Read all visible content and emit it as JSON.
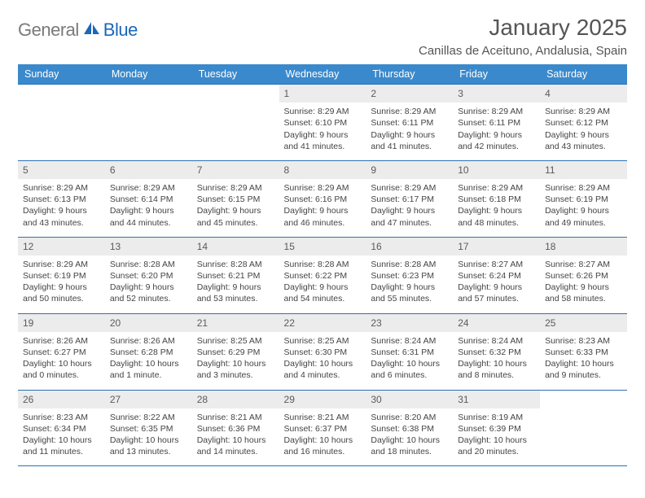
{
  "brand": {
    "general": "General",
    "blue": "Blue"
  },
  "title": "January 2025",
  "location": "Canillas de Aceituno, Andalusia, Spain",
  "colors": {
    "header_bg": "#3a89cc",
    "border": "#2a72b5",
    "daynum_bg": "#ececec",
    "text": "#444444",
    "brand_gray": "#7a7a7a",
    "brand_blue": "#1a68ba"
  },
  "weekday_labels": [
    "Sunday",
    "Monday",
    "Tuesday",
    "Wednesday",
    "Thursday",
    "Friday",
    "Saturday"
  ],
  "weeks": [
    [
      null,
      null,
      null,
      {
        "num": "1",
        "sunrise": "8:29 AM",
        "sunset": "6:10 PM",
        "daylight": "9 hours and 41 minutes."
      },
      {
        "num": "2",
        "sunrise": "8:29 AM",
        "sunset": "6:11 PM",
        "daylight": "9 hours and 41 minutes."
      },
      {
        "num": "3",
        "sunrise": "8:29 AM",
        "sunset": "6:11 PM",
        "daylight": "9 hours and 42 minutes."
      },
      {
        "num": "4",
        "sunrise": "8:29 AM",
        "sunset": "6:12 PM",
        "daylight": "9 hours and 43 minutes."
      }
    ],
    [
      {
        "num": "5",
        "sunrise": "8:29 AM",
        "sunset": "6:13 PM",
        "daylight": "9 hours and 43 minutes."
      },
      {
        "num": "6",
        "sunrise": "8:29 AM",
        "sunset": "6:14 PM",
        "daylight": "9 hours and 44 minutes."
      },
      {
        "num": "7",
        "sunrise": "8:29 AM",
        "sunset": "6:15 PM",
        "daylight": "9 hours and 45 minutes."
      },
      {
        "num": "8",
        "sunrise": "8:29 AM",
        "sunset": "6:16 PM",
        "daylight": "9 hours and 46 minutes."
      },
      {
        "num": "9",
        "sunrise": "8:29 AM",
        "sunset": "6:17 PM",
        "daylight": "9 hours and 47 minutes."
      },
      {
        "num": "10",
        "sunrise": "8:29 AM",
        "sunset": "6:18 PM",
        "daylight": "9 hours and 48 minutes."
      },
      {
        "num": "11",
        "sunrise": "8:29 AM",
        "sunset": "6:19 PM",
        "daylight": "9 hours and 49 minutes."
      }
    ],
    [
      {
        "num": "12",
        "sunrise": "8:29 AM",
        "sunset": "6:19 PM",
        "daylight": "9 hours and 50 minutes."
      },
      {
        "num": "13",
        "sunrise": "8:28 AM",
        "sunset": "6:20 PM",
        "daylight": "9 hours and 52 minutes."
      },
      {
        "num": "14",
        "sunrise": "8:28 AM",
        "sunset": "6:21 PM",
        "daylight": "9 hours and 53 minutes."
      },
      {
        "num": "15",
        "sunrise": "8:28 AM",
        "sunset": "6:22 PM",
        "daylight": "9 hours and 54 minutes."
      },
      {
        "num": "16",
        "sunrise": "8:28 AM",
        "sunset": "6:23 PM",
        "daylight": "9 hours and 55 minutes."
      },
      {
        "num": "17",
        "sunrise": "8:27 AM",
        "sunset": "6:24 PM",
        "daylight": "9 hours and 57 minutes."
      },
      {
        "num": "18",
        "sunrise": "8:27 AM",
        "sunset": "6:26 PM",
        "daylight": "9 hours and 58 minutes."
      }
    ],
    [
      {
        "num": "19",
        "sunrise": "8:26 AM",
        "sunset": "6:27 PM",
        "daylight": "10 hours and 0 minutes."
      },
      {
        "num": "20",
        "sunrise": "8:26 AM",
        "sunset": "6:28 PM",
        "daylight": "10 hours and 1 minute."
      },
      {
        "num": "21",
        "sunrise": "8:25 AM",
        "sunset": "6:29 PM",
        "daylight": "10 hours and 3 minutes."
      },
      {
        "num": "22",
        "sunrise": "8:25 AM",
        "sunset": "6:30 PM",
        "daylight": "10 hours and 4 minutes."
      },
      {
        "num": "23",
        "sunrise": "8:24 AM",
        "sunset": "6:31 PM",
        "daylight": "10 hours and 6 minutes."
      },
      {
        "num": "24",
        "sunrise": "8:24 AM",
        "sunset": "6:32 PM",
        "daylight": "10 hours and 8 minutes."
      },
      {
        "num": "25",
        "sunrise": "8:23 AM",
        "sunset": "6:33 PM",
        "daylight": "10 hours and 9 minutes."
      }
    ],
    [
      {
        "num": "26",
        "sunrise": "8:23 AM",
        "sunset": "6:34 PM",
        "daylight": "10 hours and 11 minutes."
      },
      {
        "num": "27",
        "sunrise": "8:22 AM",
        "sunset": "6:35 PM",
        "daylight": "10 hours and 13 minutes."
      },
      {
        "num": "28",
        "sunrise": "8:21 AM",
        "sunset": "6:36 PM",
        "daylight": "10 hours and 14 minutes."
      },
      {
        "num": "29",
        "sunrise": "8:21 AM",
        "sunset": "6:37 PM",
        "daylight": "10 hours and 16 minutes."
      },
      {
        "num": "30",
        "sunrise": "8:20 AM",
        "sunset": "6:38 PM",
        "daylight": "10 hours and 18 minutes."
      },
      {
        "num": "31",
        "sunrise": "8:19 AM",
        "sunset": "6:39 PM",
        "daylight": "10 hours and 20 minutes."
      },
      null
    ]
  ],
  "labels": {
    "sunrise": "Sunrise:",
    "sunset": "Sunset:",
    "daylight": "Daylight:"
  }
}
